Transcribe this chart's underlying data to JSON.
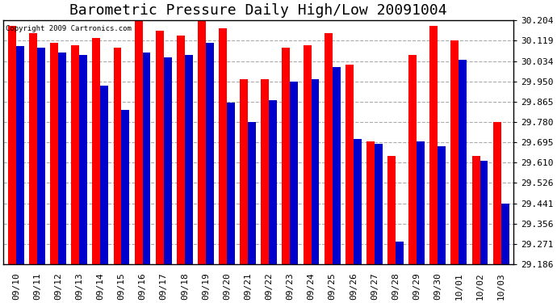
{
  "title": "Barometric Pressure Daily High/Low 20091004",
  "copyright": "Copyright 2009 Cartronics.com",
  "categories": [
    "09/10",
    "09/11",
    "09/12",
    "09/13",
    "09/14",
    "09/15",
    "09/16",
    "09/17",
    "09/18",
    "09/19",
    "09/20",
    "09/21",
    "09/22",
    "09/23",
    "09/24",
    "09/25",
    "09/26",
    "09/27",
    "09/28",
    "09/29",
    "09/30",
    "10/01",
    "10/02",
    "10/03"
  ],
  "highs": [
    30.18,
    30.15,
    30.11,
    30.1,
    30.13,
    30.09,
    30.2,
    30.16,
    30.14,
    30.205,
    30.17,
    29.96,
    29.96,
    30.09,
    30.1,
    30.15,
    30.02,
    29.7,
    29.64,
    30.06,
    30.18,
    30.12,
    29.64,
    29.78
  ],
  "lows": [
    30.095,
    30.09,
    30.07,
    30.06,
    29.93,
    29.83,
    30.07,
    30.05,
    30.06,
    30.11,
    29.86,
    29.78,
    29.87,
    29.95,
    29.96,
    30.01,
    29.71,
    29.69,
    29.28,
    29.7,
    29.68,
    30.04,
    29.62,
    29.44
  ],
  "bar_color_high": "#FF0000",
  "bar_color_low": "#0000CC",
  "background_color": "#FFFFFF",
  "plot_bg_color": "#FFFFFF",
  "grid_color": "#AAAAAA",
  "ymin": 29.186,
  "ymax": 30.204,
  "yticks": [
    29.186,
    29.271,
    29.356,
    29.441,
    29.526,
    29.61,
    29.695,
    29.78,
    29.865,
    29.95,
    30.034,
    30.119,
    30.204
  ],
  "title_fontsize": 13,
  "tick_fontsize": 8,
  "bar_width": 0.38
}
